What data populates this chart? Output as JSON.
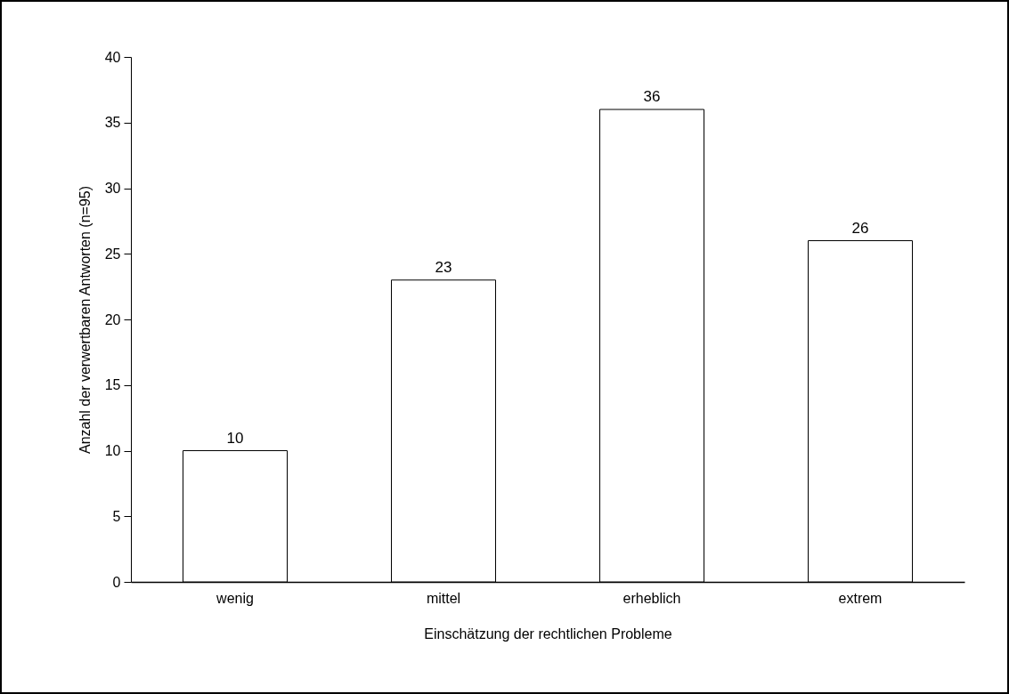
{
  "chart_data": {
    "type": "bar",
    "xlabel": "Einschätzung der rechtlichen Probleme",
    "ylabel": "Anzahl der verwertbaren Antworten (n=95)",
    "categories": [
      "wenig",
      "mittel",
      "erheblich",
      "extrem"
    ],
    "values": [
      10,
      23,
      36,
      26
    ],
    "color": "#ffffff",
    "ylim": [
      0,
      40
    ],
    "yticks": [
      0,
      5,
      10,
      15,
      20,
      25,
      30,
      35,
      40
    ],
    "grid": false,
    "data_labels": true
  }
}
